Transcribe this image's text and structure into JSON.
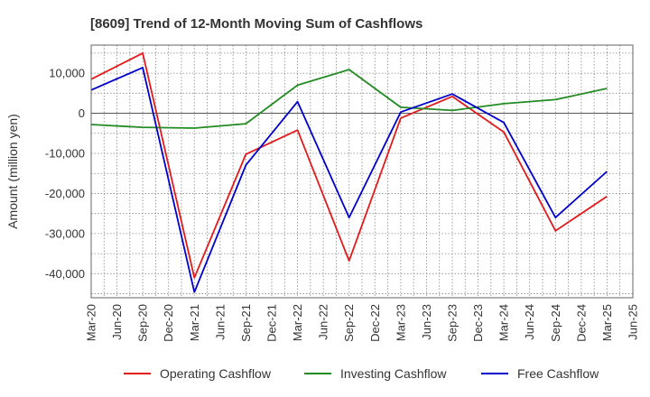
{
  "chart_data": {
    "type": "line",
    "title": "[8609]  Trend of 12-Month Moving Sum of Cashflows",
    "xlabel": "",
    "ylabel": "Amount (million yen)",
    "categories": [
      "Mar-20",
      "Jun-20",
      "Sep-20",
      "Dec-20",
      "Mar-21",
      "Jun-21",
      "Sep-21",
      "Dec-21",
      "Mar-22",
      "Jun-22",
      "Sep-22",
      "Dec-22",
      "Mar-23",
      "Jun-23",
      "Sep-23",
      "Dec-23",
      "Mar-24",
      "Jun-24",
      "Sep-24",
      "Dec-24",
      "Mar-25",
      "Jun-25"
    ],
    "ylim": [
      -46000,
      17000
    ],
    "yticks": [
      10000,
      0,
      -10000,
      -20000,
      -30000,
      -40000
    ],
    "ytick_labels": [
      "10,000",
      "0",
      "-10,000",
      "-20,000",
      "-30,000",
      "-40,000"
    ],
    "grid": true,
    "legend_position": "bottom",
    "series": [
      {
        "name": "Operating Cashflow",
        "color": "#e31a1c",
        "points": [
          {
            "x": "Mar-20",
            "y": 8500
          },
          {
            "x": "Sep-20",
            "y": 15000
          },
          {
            "x": "Mar-21",
            "y": -41000
          },
          {
            "x": "Sep-21",
            "y": -10200
          },
          {
            "x": "Mar-22",
            "y": -4200
          },
          {
            "x": "Sep-22",
            "y": -36800
          },
          {
            "x": "Mar-23",
            "y": -1200
          },
          {
            "x": "Sep-23",
            "y": 4200
          },
          {
            "x": "Mar-24",
            "y": -4700
          },
          {
            "x": "Sep-24",
            "y": -29300
          },
          {
            "x": "Mar-25",
            "y": -20700
          }
        ]
      },
      {
        "name": "Investing Cashflow",
        "color": "#228b22",
        "points": [
          {
            "x": "Mar-20",
            "y": -2800
          },
          {
            "x": "Sep-20",
            "y": -3500
          },
          {
            "x": "Mar-21",
            "y": -3700
          },
          {
            "x": "Sep-21",
            "y": -2600
          },
          {
            "x": "Mar-22",
            "y": 7000
          },
          {
            "x": "Sep-22",
            "y": 10900
          },
          {
            "x": "Mar-23",
            "y": 1500
          },
          {
            "x": "Sep-23",
            "y": 700
          },
          {
            "x": "Mar-24",
            "y": 2400
          },
          {
            "x": "Sep-24",
            "y": 3400
          },
          {
            "x": "Mar-25",
            "y": 6200
          }
        ]
      },
      {
        "name": "Free Cashflow",
        "color": "#0000cc",
        "points": [
          {
            "x": "Mar-20",
            "y": 5800
          },
          {
            "x": "Sep-20",
            "y": 11400
          },
          {
            "x": "Mar-21",
            "y": -44600
          },
          {
            "x": "Sep-21",
            "y": -12900
          },
          {
            "x": "Mar-22",
            "y": 2900
          },
          {
            "x": "Sep-22",
            "y": -26000
          },
          {
            "x": "Mar-23",
            "y": 300
          },
          {
            "x": "Sep-23",
            "y": 4800
          },
          {
            "x": "Mar-24",
            "y": -2300
          },
          {
            "x": "Sep-24",
            "y": -26000
          },
          {
            "x": "Mar-25",
            "y": -14500
          }
        ]
      }
    ]
  }
}
